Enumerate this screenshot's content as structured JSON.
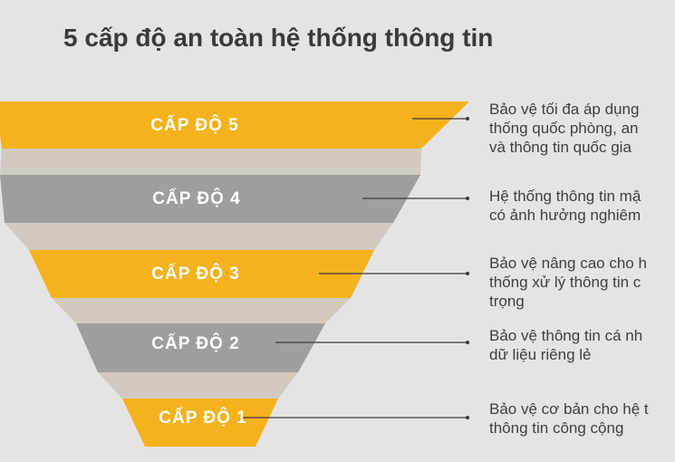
{
  "title": "5 cấp độ an toàn hệ thống thông tin",
  "colors": {
    "yellow": "#f5b21c",
    "gray": "#9e9e9e",
    "connector": "#c9c1b6",
    "background": "#e4e4e4"
  },
  "levels": [
    {
      "label": "CẤP ĐỘ 5",
      "color": "yellow",
      "description": [
        "Bảo vệ tối đa áp dụng",
        "thống quốc phòng, an",
        "và thông tin quốc gia"
      ]
    },
    {
      "label": "CẤP ĐỘ 4",
      "color": "gray",
      "description": [
        "Hệ thống thông tin mậ",
        "có ảnh hưởng nghiêm"
      ]
    },
    {
      "label": "CẤP ĐỘ 3",
      "color": "yellow",
      "description": [
        "Bảo vệ nâng cao cho h",
        "thống xử lý thông tin c",
        "trọng"
      ]
    },
    {
      "label": "CẤP ĐỘ  2",
      "color": "gray",
      "description": [
        "Bảo vệ thông tin cá nh",
        "dữ liệu riêng lẻ"
      ]
    },
    {
      "label": "CẤP ĐỘ  1",
      "color": "yellow",
      "description": [
        "Bảo vệ cơ bản cho hệ t",
        "thông tin công cộng"
      ]
    }
  ]
}
